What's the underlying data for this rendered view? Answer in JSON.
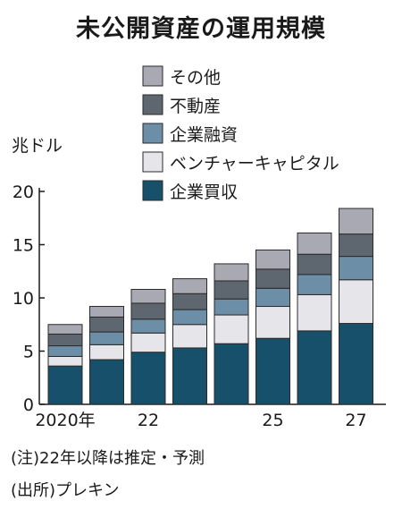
{
  "title": "未公開資産の運用規模",
  "unit_label": "兆ドル",
  "notes": [
    "(注)22年以降は推定・予測",
    "(出所)プレキン"
  ],
  "chart_data": {
    "type": "bar",
    "stacked": true,
    "title": "未公開資産の運用規模",
    "ylabel": "兆ドル",
    "xlabel": "",
    "ylim": [
      0,
      20
    ],
    "yticks": [
      0,
      5,
      10,
      15,
      20
    ],
    "grid": false,
    "legend_position": "top-right",
    "x": [
      2020,
      2021,
      2022,
      2023,
      2024,
      2025,
      2026,
      2027
    ],
    "x_tick_labels": [
      {
        "index": 0,
        "label": "2020年"
      },
      {
        "index": 2,
        "label": "22"
      },
      {
        "index": 5,
        "label": "25"
      },
      {
        "index": 7,
        "label": "27"
      }
    ],
    "series": [
      {
        "name": "企業買収",
        "color": "#17506b",
        "values": [
          3.6,
          4.2,
          4.9,
          5.3,
          5.7,
          6.2,
          6.9,
          7.6
        ]
      },
      {
        "name": "ベンチャーキャピタル",
        "color": "#e6e6ea",
        "values": [
          0.9,
          1.4,
          1.8,
          2.2,
          2.7,
          3.0,
          3.4,
          4.1
        ]
      },
      {
        "name": "企業融資",
        "color": "#6c8ea6",
        "values": [
          1.0,
          1.2,
          1.3,
          1.4,
          1.5,
          1.7,
          1.9,
          2.2
        ]
      },
      {
        "name": "不動産",
        "color": "#5e6670",
        "values": [
          1.1,
          1.4,
          1.5,
          1.5,
          1.7,
          1.8,
          1.9,
          2.1
        ]
      },
      {
        "name": "その他",
        "color": "#a9a9b3",
        "values": [
          0.9,
          1.0,
          1.3,
          1.4,
          1.6,
          1.8,
          2.0,
          2.4
        ]
      }
    ],
    "legend_order": [
      "その他",
      "不動産",
      "企業融資",
      "ベンチャーキャピタル",
      "企業買収"
    ]
  }
}
